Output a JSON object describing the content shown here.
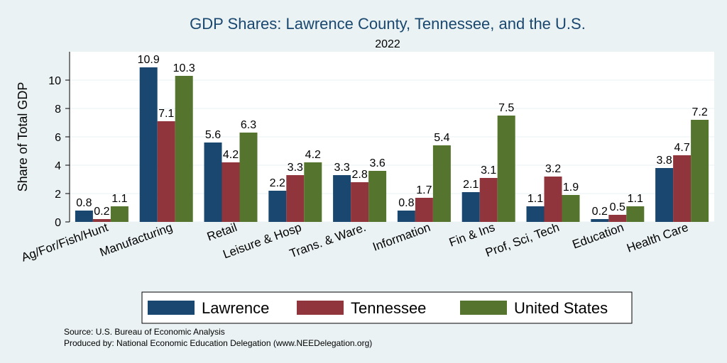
{
  "chart_data": {
    "type": "bar",
    "title": "GDP Shares: Lawrence County, Tennessee, and the U.S.",
    "subtitle": "2022",
    "ylabel": "Share of Total GDP",
    "ylim": [
      0,
      12
    ],
    "yticks": [
      0,
      2,
      4,
      6,
      8,
      10
    ],
    "grid": true,
    "legend_position": "bottom",
    "categories": [
      "Ag/For/Fish/Hunt",
      "Manufacturing",
      "Retail",
      "Leisure & Hosp",
      "Trans. & Ware.",
      "Information",
      "Fin & Ins",
      "Prof, Sci, Tech",
      "Education",
      "Health Care"
    ],
    "series": [
      {
        "name": "Lawrence",
        "color": "#1a476f",
        "values": [
          0.8,
          10.9,
          5.6,
          2.2,
          3.3,
          0.8,
          2.1,
          1.1,
          0.2,
          3.8
        ]
      },
      {
        "name": "Tennessee",
        "color": "#90353b",
        "values": [
          0.2,
          7.1,
          4.2,
          3.3,
          2.8,
          1.7,
          3.1,
          3.2,
          0.5,
          4.7
        ]
      },
      {
        "name": "United States",
        "color": "#55752f",
        "values": [
          1.1,
          10.3,
          6.3,
          4.2,
          3.6,
          5.4,
          7.5,
          1.9,
          1.1,
          7.2
        ]
      }
    ]
  },
  "notes": {
    "source": "Source: U.S. Bureau of Economic Analysis",
    "produced_by": "Produced by: National Economic Education Delegation (www.NEEDelegation.org)"
  }
}
